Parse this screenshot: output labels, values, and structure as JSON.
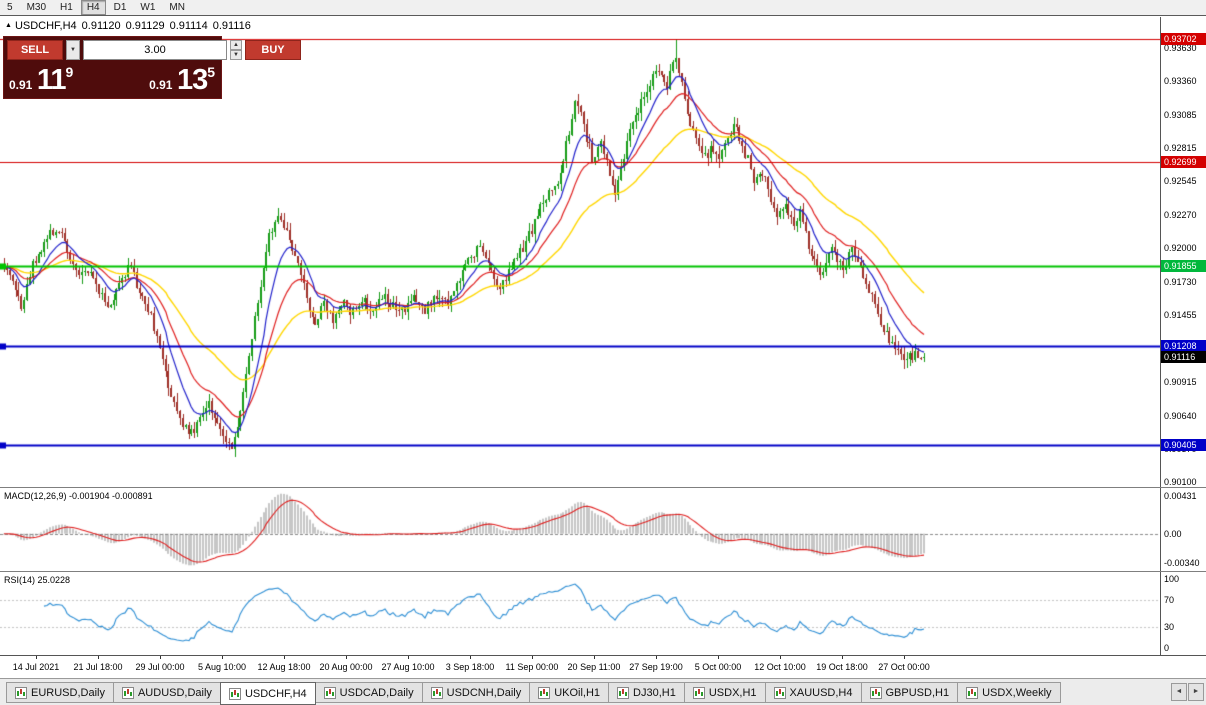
{
  "window": {
    "toolbar": {
      "timeframes": [
        "5",
        "M30",
        "H1",
        "H4",
        "D1",
        "W1",
        "MN"
      ],
      "active_timeframe": "H4"
    },
    "scroll_buttons": {
      "left": "◄",
      "right": "►"
    }
  },
  "chart": {
    "title": {
      "marker": "▲",
      "symbol": "USDCHF,H4",
      "open": "0.91120",
      "high": "0.91129",
      "low": "0.91114",
      "close": "0.91116"
    },
    "macd_label": "MACD(12,26,9) -0.001904 -0.000891",
    "rsi_label": "RSI(14) 25.0228"
  },
  "trade_panel": {
    "sell_label": "SELL",
    "buy_label": "BUY",
    "volume": "3.00",
    "sell_price": {
      "prefix": "0.91",
      "big": "11",
      "sup": "9"
    },
    "buy_price": {
      "prefix": "0.91",
      "big": "13",
      "sup": "5"
    }
  },
  "price_axis": {
    "ticks": [
      "0.93630",
      "0.93360",
      "0.93085",
      "0.92815",
      "0.92545",
      "0.92270",
      "0.92000",
      "0.91730",
      "0.91455",
      "0.90915",
      "0.90640",
      "0.90370",
      "0.90100"
    ],
    "badges": [
      {
        "label": "0.93702",
        "color": "#d40000",
        "price": 0.93702
      },
      {
        "label": "0.92699",
        "color": "#d40000",
        "price": 0.92699
      },
      {
        "label": "0.91855",
        "color": "#00b83c",
        "price": 0.91855
      },
      {
        "label": "0.91208",
        "color": "#0000c8",
        "price": 0.91208
      },
      {
        "label": "0.91116",
        "color": "#000000",
        "price": 0.91116
      },
      {
        "label": "0.90405",
        "color": "#0000c8",
        "price": 0.90405
      }
    ]
  },
  "tabs": {
    "items": [
      "EURUSD,Daily",
      "AUDUSD,Daily",
      "USDCHF,H4",
      "USDCAD,Daily",
      "USDCNH,Daily",
      "UKOil,H1",
      "DJ30,H1",
      "USDX,H1",
      "XAUUSD,H4",
      "GBPUSD,H1",
      "USDX,Weekly"
    ],
    "active": "USDCHF,H4"
  },
  "chart_data": {
    "type": "candlestick",
    "symbol": "USDCHF",
    "timeframe": "H4",
    "bars": 320,
    "seed": 1337,
    "right_margin_fraction": 0.2,
    "y_range": [
      0.9006,
      0.9388
    ],
    "current_bid": 0.91116,
    "extreme_high": 0.937,
    "extreme_low": 0.90365,
    "colors": {
      "up": "#169b16",
      "down": "#9e2f28",
      "ma_fast": "#2222cc",
      "ma_mid": "#e02020",
      "ma_slow": "#ffd700",
      "macd_hist": "#c6c6c6",
      "macd_signal": "#e02020",
      "rsi_line": "#2e8fd5",
      "level_dash": "#c4c4c4"
    },
    "moving_average_periods": {
      "fast": 10,
      "mid": 21,
      "slow": 48
    },
    "levels": [
      {
        "price": 0.93702,
        "color": "#d40000",
        "width": 1,
        "marker": false
      },
      {
        "price": 0.92699,
        "color": "#d40000",
        "width": 1,
        "marker": false
      },
      {
        "price": 0.91855,
        "color": "#00c400",
        "width": 2,
        "marker": true
      },
      {
        "price": 0.91208,
        "color": "#0000c8",
        "width": 2,
        "marker": true
      },
      {
        "price": 0.90405,
        "color": "#0000c8",
        "width": 2,
        "marker": true
      }
    ],
    "indicators": {
      "macd": {
        "name": "MACD",
        "params": [
          12,
          26,
          9
        ],
        "current_values": [
          -0.001904,
          -0.000891
        ],
        "axis_labels": [
          "0.00431",
          "0.00",
          "-0.00340"
        ]
      },
      "rsi": {
        "name": "RSI",
        "params": [
          14
        ],
        "current_value": 25.0228,
        "axis_labels": [
          "100",
          "70",
          "30",
          "0"
        ],
        "level_lines": [
          70,
          30
        ]
      }
    },
    "x_axis_labels": [
      "14 Jul 2021",
      "21 Jul 18:00",
      "29 Jul 00:00",
      "5 Aug 10:00",
      "12 Aug 18:00",
      "20 Aug 00:00",
      "27 Aug 10:00",
      "3 Sep 18:00",
      "11 Sep 00:00",
      "20 Sep 11:00",
      "27 Sep 19:00",
      "5 Oct 00:00",
      "12 Oct 10:00",
      "19 Oct 18:00",
      "27 Oct 00:00"
    ],
    "price_path_anchors": [
      [
        0,
        0.9188
      ],
      [
        0.012,
        0.9168
      ],
      [
        0.02,
        0.9152
      ],
      [
        0.03,
        0.9186
      ],
      [
        0.045,
        0.9206
      ],
      [
        0.058,
        0.9218
      ],
      [
        0.07,
        0.9198
      ],
      [
        0.08,
        0.9176
      ],
      [
        0.092,
        0.9182
      ],
      [
        0.104,
        0.9166
      ],
      [
        0.115,
        0.915
      ],
      [
        0.125,
        0.9172
      ],
      [
        0.136,
        0.9186
      ],
      [
        0.147,
        0.9166
      ],
      [
        0.158,
        0.915
      ],
      [
        0.17,
        0.9114
      ],
      [
        0.181,
        0.9084
      ],
      [
        0.192,
        0.906
      ],
      [
        0.205,
        0.9048
      ],
      [
        0.214,
        0.9062
      ],
      [
        0.222,
        0.9076
      ],
      [
        0.231,
        0.9058
      ],
      [
        0.24,
        0.9046
      ],
      [
        0.25,
        0.9039
      ],
      [
        0.26,
        0.9082
      ],
      [
        0.27,
        0.9132
      ],
      [
        0.28,
        0.9176
      ],
      [
        0.29,
        0.9214
      ],
      [
        0.298,
        0.9227
      ],
      [
        0.308,
        0.9209
      ],
      [
        0.318,
        0.9194
      ],
      [
        0.328,
        0.9162
      ],
      [
        0.338,
        0.9139
      ],
      [
        0.348,
        0.9153
      ],
      [
        0.358,
        0.9143
      ],
      [
        0.368,
        0.9156
      ],
      [
        0.379,
        0.9147
      ],
      [
        0.39,
        0.916
      ],
      [
        0.401,
        0.915
      ],
      [
        0.412,
        0.9162
      ],
      [
        0.423,
        0.9154
      ],
      [
        0.435,
        0.9147
      ],
      [
        0.447,
        0.916
      ],
      [
        0.458,
        0.9151
      ],
      [
        0.47,
        0.9163
      ],
      [
        0.481,
        0.9154
      ],
      [
        0.492,
        0.9171
      ],
      [
        0.505,
        0.9189
      ],
      [
        0.517,
        0.9201
      ],
      [
        0.528,
        0.9183
      ],
      [
        0.539,
        0.9166
      ],
      [
        0.55,
        0.9181
      ],
      [
        0.561,
        0.9196
      ],
      [
        0.574,
        0.9216
      ],
      [
        0.588,
        0.9241
      ],
      [
        0.603,
        0.9257
      ],
      [
        0.614,
        0.9292
      ],
      [
        0.622,
        0.9321
      ],
      [
        0.631,
        0.9296
      ],
      [
        0.64,
        0.9271
      ],
      [
        0.648,
        0.9289
      ],
      [
        0.656,
        0.9268
      ],
      [
        0.664,
        0.9246
      ],
      [
        0.672,
        0.9271
      ],
      [
        0.681,
        0.9296
      ],
      [
        0.69,
        0.9312
      ],
      [
        0.7,
        0.9331
      ],
      [
        0.71,
        0.9346
      ],
      [
        0.72,
        0.9331
      ],
      [
        0.729,
        0.9359
      ],
      [
        0.737,
        0.9331
      ],
      [
        0.745,
        0.9301
      ],
      [
        0.753,
        0.9286
      ],
      [
        0.761,
        0.9272
      ],
      [
        0.769,
        0.9281
      ],
      [
        0.777,
        0.9269
      ],
      [
        0.785,
        0.9286
      ],
      [
        0.793,
        0.9299
      ],
      [
        0.801,
        0.9286
      ],
      [
        0.809,
        0.9271
      ],
      [
        0.817,
        0.9252
      ],
      [
        0.825,
        0.9263
      ],
      [
        0.833,
        0.9241
      ],
      [
        0.841,
        0.9226
      ],
      [
        0.849,
        0.9236
      ],
      [
        0.857,
        0.9219
      ],
      [
        0.865,
        0.9229
      ],
      [
        0.873,
        0.9206
      ],
      [
        0.881,
        0.9191
      ],
      [
        0.889,
        0.9176
      ],
      [
        0.897,
        0.9201
      ],
      [
        0.905,
        0.9193
      ],
      [
        0.913,
        0.9181
      ],
      [
        0.921,
        0.9199
      ],
      [
        0.931,
        0.9186
      ],
      [
        0.941,
        0.9166
      ],
      [
        0.951,
        0.9141
      ],
      [
        0.963,
        0.9126
      ],
      [
        0.976,
        0.9113
      ],
      [
        1,
        0.9112
      ]
    ]
  }
}
